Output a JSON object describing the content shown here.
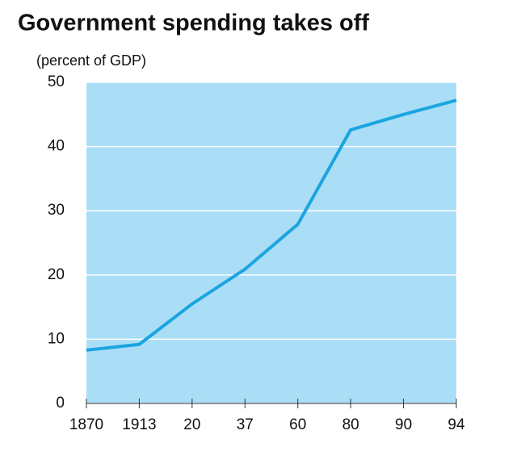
{
  "chart_data": {
    "type": "line",
    "title": "Government spending takes off",
    "subtitle": "(percent of GDP)",
    "categories": [
      "1870",
      "1913",
      "20",
      "37",
      "60",
      "80",
      "90",
      "94"
    ],
    "values": [
      8.3,
      9.2,
      15.5,
      20.9,
      27.9,
      42.6,
      45,
      47.2
    ],
    "color": "#1ba5e0",
    "background": "#a9def6",
    "ylim": [
      0,
      50
    ],
    "yticks": [
      0,
      10,
      20,
      30,
      40,
      50
    ],
    "grid": true
  }
}
